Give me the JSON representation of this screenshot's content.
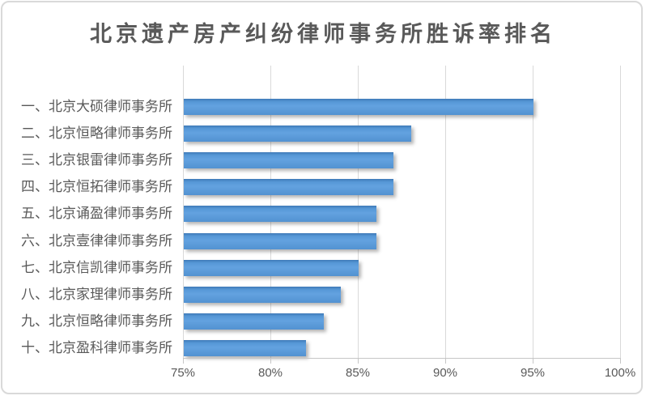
{
  "chart_data": {
    "type": "bar",
    "orientation": "horizontal",
    "title": "北京遗产房产纠纷律师事务所胜诉率排名",
    "categories": [
      "一、北京大硕律师事务所",
      "二、北京恒略律师事务所",
      "三、北京银雷律师事务所",
      "四、北京恒拓律师事务所",
      "五、北京诵盈律师事务所",
      "六、北京壹律律师事务所",
      "七、北京信凯律师事务所",
      "八、北京家理律师事务所",
      "九、北京恒略律师事务所",
      "十、北京盈科律师事务所"
    ],
    "values": [
      95,
      88,
      87,
      87,
      86,
      86,
      85,
      84,
      83,
      82
    ],
    "unit": "%",
    "xlabel": "",
    "ylabel": "",
    "xlim": [
      75,
      100
    ],
    "xtick_values": [
      75,
      80,
      85,
      90,
      95,
      100
    ],
    "xtick_labels": [
      "75%",
      "80%",
      "85%",
      "90%",
      "95%",
      "100%"
    ],
    "grid": "vertical",
    "legend": "none",
    "colors": {
      "bar": "#5B9BD5",
      "text": "#595959",
      "gridline": "#D9D9D9",
      "axis_line": "#C6C6C6",
      "frame_border": "#D9D9D9",
      "background": "#FFFFFF"
    }
  }
}
